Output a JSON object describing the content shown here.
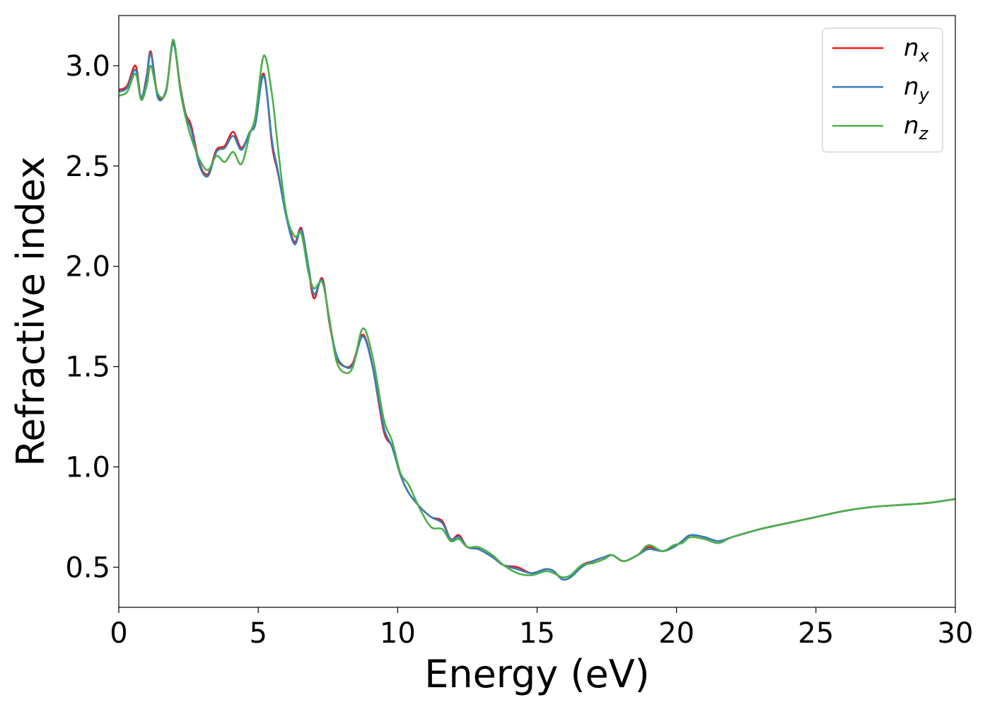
{
  "chart_data": {
    "type": "line",
    "title": "",
    "xlabel": "Energy (eV)",
    "ylabel": "Refractive index",
    "xlim": [
      0,
      30
    ],
    "ylim": [
      0.3,
      3.25
    ],
    "xticks": [
      0,
      5,
      10,
      15,
      20,
      25,
      30
    ],
    "yticks": [
      0.5,
      1.0,
      1.5,
      2.0,
      2.5,
      3.0
    ],
    "xtick_labels": [
      "0",
      "5",
      "10",
      "15",
      "20",
      "25",
      "30"
    ],
    "ytick_labels": [
      "0.5",
      "1.0",
      "1.5",
      "2.0",
      "2.5",
      "3.0"
    ],
    "grid": false,
    "legend_position": "top-right",
    "series": [
      {
        "name": "x",
        "legend_label": "n",
        "color": "#e41a1c",
        "points": [
          [
            0,
            2.88
          ],
          [
            0.3,
            2.9
          ],
          [
            0.6,
            3.0
          ],
          [
            0.8,
            2.84
          ],
          [
            1.0,
            2.95
          ],
          [
            1.15,
            3.07
          ],
          [
            1.4,
            2.85
          ],
          [
            1.7,
            2.88
          ],
          [
            1.95,
            3.12
          ],
          [
            2.2,
            2.9
          ],
          [
            2.4,
            2.76
          ],
          [
            2.6,
            2.7
          ],
          [
            2.9,
            2.51
          ],
          [
            3.2,
            2.46
          ],
          [
            3.5,
            2.58
          ],
          [
            3.8,
            2.6
          ],
          [
            4.1,
            2.67
          ],
          [
            4.4,
            2.59
          ],
          [
            4.7,
            2.67
          ],
          [
            4.9,
            2.72
          ],
          [
            5.2,
            2.96
          ],
          [
            5.5,
            2.6
          ],
          [
            5.7,
            2.47
          ],
          [
            6.0,
            2.26
          ],
          [
            6.3,
            2.12
          ],
          [
            6.55,
            2.19
          ],
          [
            6.8,
            1.99
          ],
          [
            7.0,
            1.84
          ],
          [
            7.3,
            1.94
          ],
          [
            7.55,
            1.72
          ],
          [
            7.8,
            1.55
          ],
          [
            8.1,
            1.5
          ],
          [
            8.4,
            1.52
          ],
          [
            8.75,
            1.66
          ],
          [
            9.1,
            1.5
          ],
          [
            9.5,
            1.18
          ],
          [
            9.8,
            1.1
          ],
          [
            10.1,
            0.96
          ],
          [
            10.4,
            0.87
          ],
          [
            10.8,
            0.8
          ],
          [
            11.2,
            0.75
          ],
          [
            11.6,
            0.73
          ],
          [
            11.9,
            0.64
          ],
          [
            12.2,
            0.66
          ],
          [
            12.5,
            0.6
          ],
          [
            12.9,
            0.59
          ],
          [
            13.4,
            0.55
          ],
          [
            13.8,
            0.51
          ],
          [
            14.3,
            0.5
          ],
          [
            14.8,
            0.47
          ],
          [
            15.3,
            0.49
          ],
          [
            15.6,
            0.48
          ],
          [
            15.9,
            0.44
          ],
          [
            16.2,
            0.45
          ],
          [
            16.6,
            0.51
          ],
          [
            17.0,
            0.53
          ],
          [
            17.4,
            0.55
          ],
          [
            17.7,
            0.56
          ],
          [
            18.1,
            0.53
          ],
          [
            18.6,
            0.56
          ],
          [
            19.0,
            0.6
          ],
          [
            19.5,
            0.58
          ],
          [
            19.9,
            0.6
          ],
          [
            20.2,
            0.63
          ],
          [
            20.5,
            0.66
          ],
          [
            21.0,
            0.65
          ],
          [
            21.5,
            0.63
          ],
          [
            22.0,
            0.65
          ],
          [
            23.0,
            0.69
          ],
          [
            24.0,
            0.72
          ],
          [
            25.0,
            0.75
          ],
          [
            26.0,
            0.78
          ],
          [
            27.0,
            0.8
          ],
          [
            28.0,
            0.81
          ],
          [
            29.0,
            0.82
          ],
          [
            30.0,
            0.84
          ]
        ]
      },
      {
        "name": "y",
        "legend_label": "n",
        "color": "#377eb8",
        "points": [
          [
            0,
            2.87
          ],
          [
            0.3,
            2.89
          ],
          [
            0.6,
            2.98
          ],
          [
            0.8,
            2.84
          ],
          [
            1.0,
            2.94
          ],
          [
            1.15,
            3.06
          ],
          [
            1.4,
            2.84
          ],
          [
            1.7,
            2.88
          ],
          [
            1.95,
            3.11
          ],
          [
            2.2,
            2.89
          ],
          [
            2.4,
            2.75
          ],
          [
            2.6,
            2.68
          ],
          [
            2.9,
            2.5
          ],
          [
            3.2,
            2.45
          ],
          [
            3.5,
            2.57
          ],
          [
            3.8,
            2.59
          ],
          [
            4.1,
            2.65
          ],
          [
            4.4,
            2.58
          ],
          [
            4.7,
            2.67
          ],
          [
            4.9,
            2.71
          ],
          [
            5.2,
            2.95
          ],
          [
            5.5,
            2.62
          ],
          [
            5.7,
            2.48
          ],
          [
            6.0,
            2.25
          ],
          [
            6.3,
            2.11
          ],
          [
            6.55,
            2.18
          ],
          [
            6.8,
            2.0
          ],
          [
            7.0,
            1.86
          ],
          [
            7.3,
            1.93
          ],
          [
            7.55,
            1.73
          ],
          [
            7.8,
            1.56
          ],
          [
            8.1,
            1.5
          ],
          [
            8.4,
            1.51
          ],
          [
            8.75,
            1.65
          ],
          [
            9.1,
            1.5
          ],
          [
            9.5,
            1.2
          ],
          [
            9.8,
            1.1
          ],
          [
            10.1,
            0.96
          ],
          [
            10.4,
            0.87
          ],
          [
            10.8,
            0.8
          ],
          [
            11.2,
            0.75
          ],
          [
            11.6,
            0.72
          ],
          [
            11.9,
            0.64
          ],
          [
            12.2,
            0.65
          ],
          [
            12.5,
            0.6
          ],
          [
            12.9,
            0.59
          ],
          [
            13.4,
            0.55
          ],
          [
            13.8,
            0.51
          ],
          [
            14.3,
            0.49
          ],
          [
            14.8,
            0.47
          ],
          [
            15.3,
            0.49
          ],
          [
            15.6,
            0.48
          ],
          [
            15.9,
            0.44
          ],
          [
            16.2,
            0.45
          ],
          [
            16.6,
            0.5
          ],
          [
            17.0,
            0.53
          ],
          [
            17.4,
            0.55
          ],
          [
            17.7,
            0.56
          ],
          [
            18.1,
            0.53
          ],
          [
            18.6,
            0.56
          ],
          [
            19.0,
            0.59
          ],
          [
            19.5,
            0.58
          ],
          [
            19.9,
            0.6
          ],
          [
            20.2,
            0.63
          ],
          [
            20.5,
            0.66
          ],
          [
            21.0,
            0.65
          ],
          [
            21.5,
            0.63
          ],
          [
            22.0,
            0.65
          ],
          [
            23.0,
            0.69
          ],
          [
            24.0,
            0.72
          ],
          [
            25.0,
            0.75
          ],
          [
            26.0,
            0.78
          ],
          [
            27.0,
            0.8
          ],
          [
            28.0,
            0.81
          ],
          [
            29.0,
            0.82
          ],
          [
            30.0,
            0.84
          ]
        ]
      },
      {
        "name": "z",
        "legend_label": "n",
        "color": "#4daf4a",
        "points": [
          [
            0,
            2.85
          ],
          [
            0.3,
            2.87
          ],
          [
            0.6,
            2.96
          ],
          [
            0.8,
            2.83
          ],
          [
            1.0,
            2.9
          ],
          [
            1.15,
            3.0
          ],
          [
            1.4,
            2.86
          ],
          [
            1.7,
            2.87
          ],
          [
            1.95,
            3.13
          ],
          [
            2.2,
            2.88
          ],
          [
            2.4,
            2.74
          ],
          [
            2.6,
            2.64
          ],
          [
            2.9,
            2.53
          ],
          [
            3.2,
            2.48
          ],
          [
            3.5,
            2.55
          ],
          [
            3.8,
            2.52
          ],
          [
            4.1,
            2.57
          ],
          [
            4.4,
            2.51
          ],
          [
            4.7,
            2.66
          ],
          [
            4.9,
            2.75
          ],
          [
            5.2,
            3.05
          ],
          [
            5.5,
            2.85
          ],
          [
            5.7,
            2.6
          ],
          [
            6.0,
            2.27
          ],
          [
            6.3,
            2.15
          ],
          [
            6.55,
            2.16
          ],
          [
            6.8,
            1.97
          ],
          [
            7.0,
            1.89
          ],
          [
            7.3,
            1.92
          ],
          [
            7.55,
            1.74
          ],
          [
            7.8,
            1.53
          ],
          [
            8.1,
            1.47
          ],
          [
            8.4,
            1.5
          ],
          [
            8.75,
            1.69
          ],
          [
            9.1,
            1.55
          ],
          [
            9.5,
            1.24
          ],
          [
            9.8,
            1.13
          ],
          [
            10.1,
            0.97
          ],
          [
            10.4,
            0.91
          ],
          [
            10.8,
            0.79
          ],
          [
            11.2,
            0.7
          ],
          [
            11.6,
            0.69
          ],
          [
            11.9,
            0.63
          ],
          [
            12.2,
            0.64
          ],
          [
            12.5,
            0.6
          ],
          [
            12.9,
            0.6
          ],
          [
            13.4,
            0.56
          ],
          [
            13.8,
            0.51
          ],
          [
            14.3,
            0.47
          ],
          [
            14.8,
            0.46
          ],
          [
            15.3,
            0.48
          ],
          [
            15.6,
            0.47
          ],
          [
            15.9,
            0.45
          ],
          [
            16.2,
            0.46
          ],
          [
            16.6,
            0.51
          ],
          [
            17.0,
            0.52
          ],
          [
            17.4,
            0.54
          ],
          [
            17.7,
            0.56
          ],
          [
            18.1,
            0.53
          ],
          [
            18.6,
            0.56
          ],
          [
            19.0,
            0.61
          ],
          [
            19.5,
            0.58
          ],
          [
            19.9,
            0.61
          ],
          [
            20.2,
            0.62
          ],
          [
            20.5,
            0.65
          ],
          [
            21.0,
            0.64
          ],
          [
            21.5,
            0.62
          ],
          [
            22.0,
            0.65
          ],
          [
            23.0,
            0.69
          ],
          [
            24.0,
            0.72
          ],
          [
            25.0,
            0.75
          ],
          [
            26.0,
            0.78
          ],
          [
            27.0,
            0.8
          ],
          [
            28.0,
            0.81
          ],
          [
            29.0,
            0.82
          ],
          [
            30.0,
            0.84
          ]
        ]
      }
    ]
  }
}
